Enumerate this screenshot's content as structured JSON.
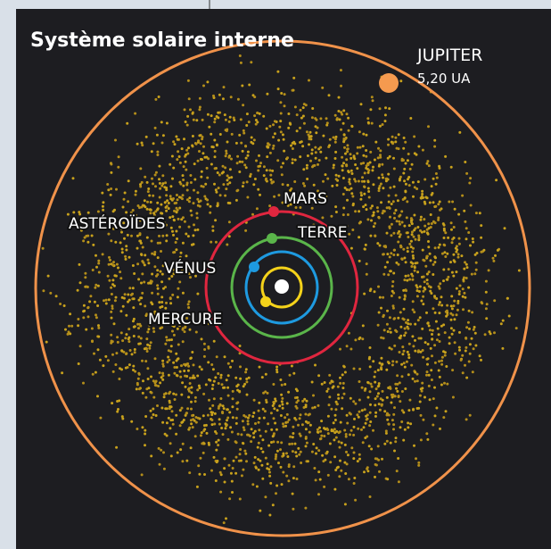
{
  "header": {
    "title": "Système solaire interne"
  },
  "labels": {
    "jupiter": "JUPITER",
    "jupiter_distance": "5,20 UA",
    "asteroids": "ASTÉROÏDES",
    "mars": "MARS",
    "earth": "TERRE",
    "venus": "VÉNUS",
    "mercury": "MERCURE"
  }
}
